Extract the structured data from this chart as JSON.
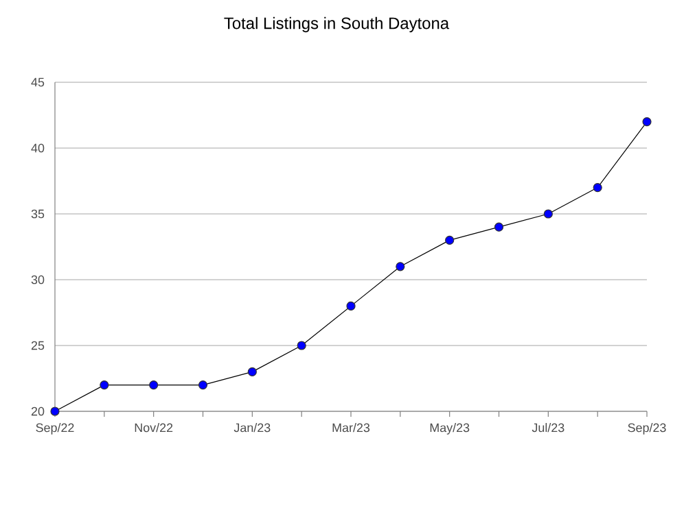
{
  "chart_data": {
    "type": "line",
    "title": "Total Listings in South Daytona",
    "categories": [
      "Sep/22",
      null,
      "Nov/22",
      null,
      "Jan/23",
      null,
      "Mar/23",
      null,
      "May/23",
      null,
      "Jul/23",
      null,
      "Sep/23"
    ],
    "series": [
      {
        "color": "#0000ff",
        "values": [
          20,
          22,
          22,
          22,
          23,
          25,
          28,
          31,
          33,
          34,
          35,
          37,
          42
        ]
      }
    ],
    "ylim": [
      20,
      45
    ],
    "yticks": [
      20,
      25,
      30,
      35,
      40,
      45
    ],
    "grid": "y",
    "marker": "circle",
    "line_style": "solid"
  }
}
